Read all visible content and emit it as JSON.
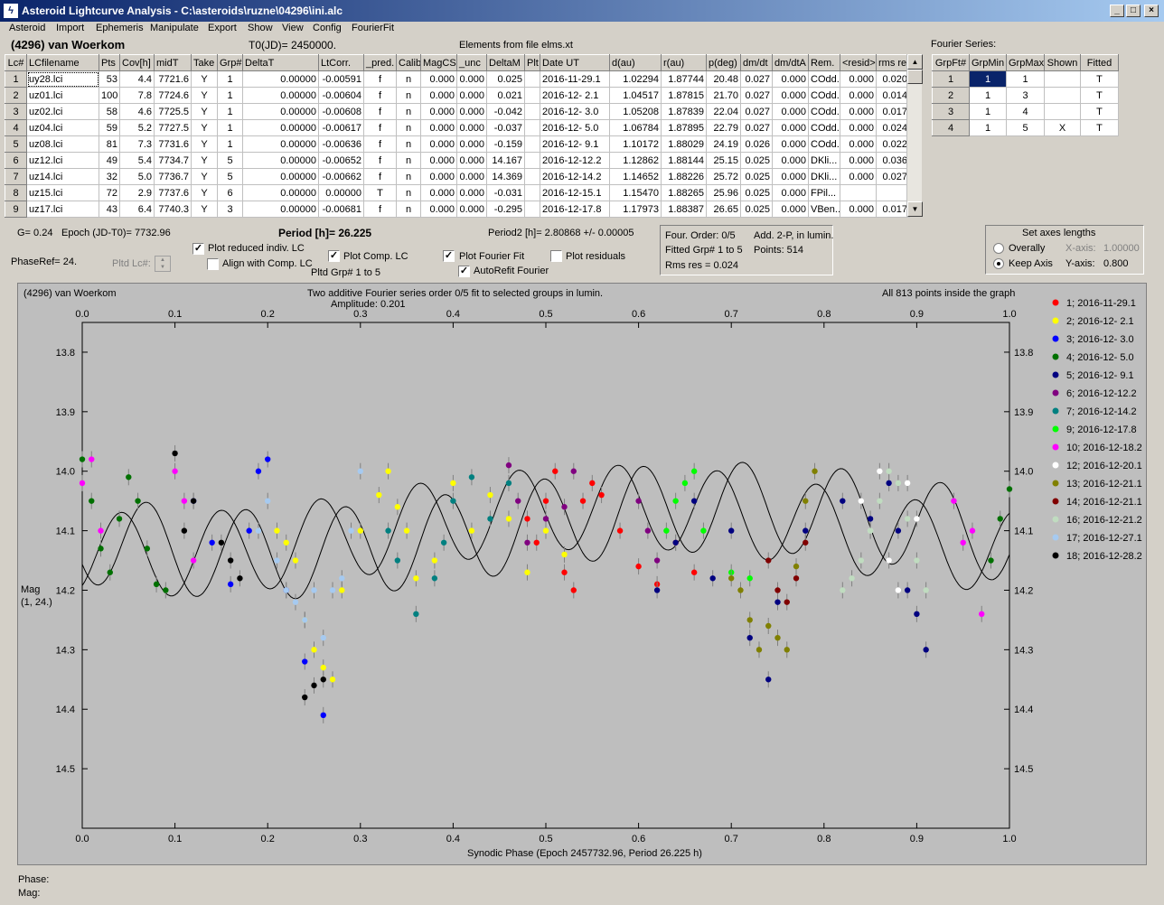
{
  "window": {
    "title": "Asteroid Lightcurve Analysis - C:\\asteroids\\ruzne\\04296\\ini.alc",
    "icon": "lightning-app-icon",
    "min_label": "_",
    "max_label": "□",
    "close_label": "×"
  },
  "menu": [
    "Asteroid",
    "Import",
    "Ephemeris",
    "Manipulate",
    "Export",
    "Show",
    "View",
    "Config",
    "FourierFit"
  ],
  "header": {
    "asteroid": "(4296) van Woerkom",
    "t0": "T0(JD)= 2450000.",
    "elements": "Elements from file elms.xt",
    "fourier_title": "Fourier Series:"
  },
  "lc_table": {
    "columns": [
      "Lc#",
      "LCfilename",
      "Pts",
      "Cov[h]",
      "midT",
      "Take",
      "Grp#",
      "DeltaT",
      "LtCorr.",
      "_pred.",
      "Calib.",
      "MagCS",
      "_unc",
      "DeltaM",
      "Plt",
      "Date UT",
      "d(au)",
      "r(au)",
      "p(deg)",
      "dm/dt",
      "dm/dtA",
      "Rem.",
      "<resid>",
      "rms res"
    ],
    "rows": [
      [
        "1",
        "uy28.lci",
        "53",
        "4.4",
        "7721.6",
        "Y",
        "1",
        "0.00000",
        "-0.00591",
        "f",
        "n",
        "0.000",
        "0.000",
        "0.025",
        "",
        "2016-11-29.1",
        "1.02294",
        "1.87744",
        "20.48",
        "0.027",
        "0.000",
        "COdd...",
        "0.000",
        "0.020"
      ],
      [
        "2",
        "uz01.lci",
        "100",
        "7.8",
        "7724.6",
        "Y",
        "1",
        "0.00000",
        "-0.00604",
        "f",
        "n",
        "0.000",
        "0.000",
        "0.021",
        "",
        "2016-12- 2.1",
        "1.04517",
        "1.87815",
        "21.70",
        "0.027",
        "0.000",
        "COdd...",
        "0.000",
        "0.014"
      ],
      [
        "3",
        "uz02.lci",
        "58",
        "4.6",
        "7725.5",
        "Y",
        "1",
        "0.00000",
        "-0.00608",
        "f",
        "n",
        "0.000",
        "0.000",
        "-0.042",
        "",
        "2016-12- 3.0",
        "1.05208",
        "1.87839",
        "22.04",
        "0.027",
        "0.000",
        "COdd...",
        "0.000",
        "0.017"
      ],
      [
        "4",
        "uz04.lci",
        "59",
        "5.2",
        "7727.5",
        "Y",
        "1",
        "0.00000",
        "-0.00617",
        "f",
        "n",
        "0.000",
        "0.000",
        "-0.037",
        "",
        "2016-12- 5.0",
        "1.06784",
        "1.87895",
        "22.79",
        "0.027",
        "0.000",
        "COdd...",
        "0.000",
        "0.024"
      ],
      [
        "5",
        "uz08.lci",
        "81",
        "7.3",
        "7731.6",
        "Y",
        "1",
        "0.00000",
        "-0.00636",
        "f",
        "n",
        "0.000",
        "0.000",
        "-0.159",
        "",
        "2016-12- 9.1",
        "1.10172",
        "1.88029",
        "24.19",
        "0.026",
        "0.000",
        "COdd...",
        "0.000",
        "0.022"
      ],
      [
        "6",
        "uz12.lci",
        "49",
        "5.4",
        "7734.7",
        "Y",
        "5",
        "0.00000",
        "-0.00652",
        "f",
        "n",
        "0.000",
        "0.000",
        "14.167",
        "",
        "2016-12-12.2",
        "1.12862",
        "1.88144",
        "25.15",
        "0.025",
        "0.000",
        "DKli...",
        "0.000",
        "0.036"
      ],
      [
        "7",
        "uz14.lci",
        "32",
        "5.0",
        "7736.7",
        "Y",
        "5",
        "0.00000",
        "-0.00662",
        "f",
        "n",
        "0.000",
        "0.000",
        "14.369",
        "",
        "2016-12-14.2",
        "1.14652",
        "1.88226",
        "25.72",
        "0.025",
        "0.000",
        "DKli...",
        "0.000",
        "0.027"
      ],
      [
        "8",
        "uz15.lci",
        "72",
        "2.9",
        "7737.6",
        "Y",
        "6",
        "0.00000",
        "0.00000",
        "T",
        "n",
        "0.000",
        "0.000",
        "-0.031",
        "",
        "2016-12-15.1",
        "1.15470",
        "1.88265",
        "25.96",
        "0.025",
        "0.000",
        "FPil...",
        "",
        ""
      ],
      [
        "9",
        "uz17.lci",
        "43",
        "6.4",
        "7740.3",
        "Y",
        "3",
        "0.00000",
        "-0.00681",
        "f",
        "n",
        "0.000",
        "0.000",
        "-0.295",
        "",
        "2016-12-17.8",
        "1.17973",
        "1.88387",
        "26.65",
        "0.025",
        "0.000",
        "VBen...",
        "0.000",
        "0.017"
      ]
    ]
  },
  "fourier_table": {
    "columns": [
      "GrpFt#",
      "GrpMin",
      "GrpMax",
      "Shown",
      "Fitted"
    ],
    "rows": [
      [
        "1",
        "1",
        "1",
        "",
        "T"
      ],
      [
        "2",
        "1",
        "3",
        "",
        "T"
      ],
      [
        "3",
        "1",
        "4",
        "",
        "T"
      ],
      [
        "4",
        "1",
        "5",
        "X",
        "T"
      ]
    ]
  },
  "controls": {
    "g": "G= 0.24",
    "epoch": "Epoch (JD-T0)= 7732.96",
    "period": "Period [h]= 26.225",
    "period2": "Period2 [h]= 2.80868 +/- 0.00005",
    "phase_ref": "PhaseRef= 24.",
    "pltd_lc": "Pltd Lc#:",
    "plot_reduced": "Plot reduced indiv. LC",
    "align": "Align with Comp. LC",
    "plot_comp": "Plot Comp. LC",
    "pltd_grp": "Pltd Grp#  1   to   5",
    "plot_fourier": "Plot Fourier Fit",
    "autorefit": "AutoRefit Fourier",
    "plot_resid": "Plot residuals",
    "check_mark": "✓",
    "four_order": "Four. Order:  0/5",
    "add_2p": "Add. 2-P, in lumin.",
    "fitted_grp": "Fitted Grp# 1 to 5",
    "points": "Points: 514",
    "rms": "Rms res     = 0.024",
    "axes_title": "Set axes lengths",
    "overally": "Overally",
    "keep_axis": "Keep Axis",
    "xaxis_label": "X-axis:",
    "xaxis_val": "1.00000",
    "yaxis_label": "Y-axis:",
    "yaxis_val": "0.800"
  },
  "plot_text": {
    "left_title": "(4296) van Woerkom",
    "center_title": "Two additive Fourier series order 0/5 fit to selected groups in lumin.",
    "amplitude": "Amplitude: 0.201",
    "right_title": "All 813 points inside the graph",
    "ylabel1": "Mag",
    "ylabel2": "(1, 24.)",
    "xlabel": "Synodic Phase (Epoch 2457732.96, Period 26.225 h)"
  },
  "status": {
    "phase": "Phase:",
    "mag": "Mag:"
  },
  "chart_data": {
    "type": "scatter",
    "xlim": [
      0,
      1
    ],
    "ylim": [
      14.6,
      13.75
    ],
    "x_ticks": [
      0.0,
      0.1,
      0.2,
      0.3,
      0.4,
      0.5,
      0.6,
      0.7,
      0.8,
      0.9,
      1.0
    ],
    "y_ticks": [
      13.8,
      13.9,
      14.0,
      14.1,
      14.2,
      14.3,
      14.4,
      14.5
    ],
    "grid": false,
    "legend_position": "right",
    "series": [
      {
        "name": "1; 2016-11-29.1",
        "color": "#ff0000",
        "x": [
          0.48,
          0.49,
          0.5,
          0.51,
          0.52,
          0.53,
          0.54,
          0.55,
          0.56,
          0.58,
          0.6,
          0.62,
          0.64,
          0.66
        ],
        "y": [
          14.08,
          14.12,
          14.05,
          14.0,
          14.17,
          14.2,
          14.05,
          14.02,
          14.04,
          14.1,
          14.16,
          14.19,
          14.12,
          14.17
        ]
      },
      {
        "name": "2; 2016-12- 2.1",
        "color": "#ffff00",
        "x": [
          0.21,
          0.22,
          0.23,
          0.24,
          0.25,
          0.26,
          0.27,
          0.28,
          0.3,
          0.32,
          0.33,
          0.34,
          0.35,
          0.36,
          0.38,
          0.4,
          0.42,
          0.44,
          0.46,
          0.48,
          0.5,
          0.52
        ],
        "y": [
          14.1,
          14.12,
          14.15,
          14.25,
          14.3,
          14.33,
          14.35,
          14.2,
          14.1,
          14.04,
          14.0,
          14.06,
          14.1,
          14.18,
          14.15,
          14.02,
          14.1,
          14.04,
          14.08,
          14.17,
          14.1,
          14.14
        ]
      },
      {
        "name": "3; 2016-12- 3.0",
        "color": "#0000ff",
        "x": [
          0.12,
          0.14,
          0.16,
          0.18,
          0.19,
          0.2,
          0.22,
          0.24,
          0.26
        ],
        "y": [
          14.05,
          14.12,
          14.19,
          14.1,
          14.0,
          13.98,
          14.2,
          14.32,
          14.41
        ]
      },
      {
        "name": "4; 2016-12- 5.0",
        "color": "#007000",
        "x": [
          0.0,
          0.01,
          0.02,
          0.03,
          0.04,
          0.05,
          0.06,
          0.07,
          0.08,
          0.09,
          0.98,
          0.99,
          1.0
        ],
        "y": [
          13.98,
          14.05,
          14.13,
          14.17,
          14.08,
          14.01,
          14.05,
          14.13,
          14.19,
          14.2,
          14.15,
          14.08,
          14.03
        ]
      },
      {
        "name": "5; 2016-12- 9.1",
        "color": "#000080",
        "x": [
          0.62,
          0.64,
          0.66,
          0.68,
          0.7,
          0.72,
          0.74,
          0.75,
          0.78,
          0.82,
          0.85,
          0.87,
          0.88,
          0.89,
          0.9,
          0.91
        ],
        "y": [
          14.2,
          14.12,
          14.05,
          14.18,
          14.1,
          14.28,
          14.35,
          14.22,
          14.1,
          14.05,
          14.08,
          14.02,
          14.1,
          14.2,
          14.24,
          14.3
        ]
      },
      {
        "name": "6; 2016-12-12.2",
        "color": "#800080",
        "x": [
          0.46,
          0.47,
          0.48,
          0.5,
          0.52,
          0.53,
          0.6,
          0.61,
          0.62
        ],
        "y": [
          13.99,
          14.05,
          14.12,
          14.08,
          14.06,
          14.0,
          14.05,
          14.1,
          14.15
        ]
      },
      {
        "name": "7; 2016-12-14.2",
        "color": "#008080",
        "x": [
          0.33,
          0.34,
          0.36,
          0.38,
          0.39,
          0.4,
          0.42,
          0.44,
          0.46
        ],
        "y": [
          14.1,
          14.15,
          14.24,
          14.18,
          14.12,
          14.05,
          14.01,
          14.08,
          14.02
        ]
      },
      {
        "name": "9; 2016-12-17.8",
        "color": "#00ff00",
        "x": [
          0.63,
          0.64,
          0.65,
          0.66,
          0.67,
          0.7,
          0.72
        ],
        "y": [
          14.1,
          14.05,
          14.02,
          14.0,
          14.1,
          14.17,
          14.18
        ]
      },
      {
        "name": "10; 2016-12-18.2",
        "color": "#ff00ff",
        "x": [
          0.0,
          0.01,
          0.02,
          0.1,
          0.11,
          0.12,
          0.94,
          0.95,
          0.96,
          0.97
        ],
        "y": [
          14.02,
          13.98,
          14.1,
          14.0,
          14.05,
          14.15,
          14.05,
          14.12,
          14.1,
          14.24
        ]
      },
      {
        "name": "12; 2016-12-20.1",
        "color": "#ffffff",
        "x": [
          0.84,
          0.85,
          0.86,
          0.87,
          0.88,
          0.89,
          0.9
        ],
        "y": [
          14.05,
          14.1,
          14.0,
          14.15,
          14.2,
          14.02,
          14.08
        ]
      },
      {
        "name": "13; 2016-12-21.1",
        "color": "#808000",
        "x": [
          0.7,
          0.71,
          0.72,
          0.73,
          0.74,
          0.75,
          0.76,
          0.77,
          0.78,
          0.79
        ],
        "y": [
          14.18,
          14.2,
          14.25,
          14.3,
          14.26,
          14.28,
          14.3,
          14.16,
          14.05,
          14.0
        ]
      },
      {
        "name": "14; 2016-12-21.1",
        "color": "#800000",
        "x": [
          0.74,
          0.75,
          0.76,
          0.77,
          0.78
        ],
        "y": [
          14.15,
          14.2,
          14.22,
          14.18,
          14.12
        ]
      },
      {
        "name": "16; 2016-12-21.2",
        "color": "#c0dcc0",
        "x": [
          0.82,
          0.83,
          0.84,
          0.85,
          0.86,
          0.87,
          0.88,
          0.89,
          0.9,
          0.91
        ],
        "y": [
          14.2,
          14.18,
          14.15,
          14.1,
          14.05,
          14.0,
          14.02,
          14.08,
          14.15,
          14.2
        ]
      },
      {
        "name": "17; 2016-12-27.1",
        "color": "#a6caf0",
        "x": [
          0.19,
          0.2,
          0.21,
          0.22,
          0.23,
          0.24,
          0.25,
          0.26,
          0.27,
          0.28,
          0.29,
          0.3
        ],
        "y": [
          14.1,
          14.05,
          14.15,
          14.2,
          14.22,
          14.25,
          14.2,
          14.28,
          14.2,
          14.18,
          14.1,
          14.0
        ]
      },
      {
        "name": "18; 2016-12-28.2",
        "color": "#000000",
        "x": [
          0.1,
          0.11,
          0.12,
          0.15,
          0.16,
          0.17,
          0.24,
          0.25,
          0.26
        ],
        "y": [
          13.97,
          14.1,
          14.05,
          14.12,
          14.15,
          14.18,
          14.38,
          14.36,
          14.35
        ]
      }
    ]
  }
}
